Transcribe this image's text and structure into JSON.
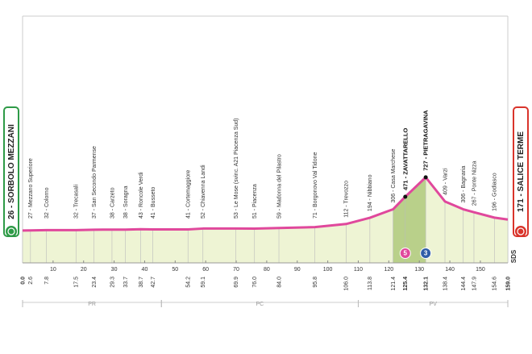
{
  "chart_data": {
    "type": "area",
    "x": [
      0.0,
      2.6,
      7.8,
      17.5,
      23.4,
      29.3,
      33.7,
      38.7,
      42.7,
      54.2,
      59.1,
      69.9,
      76.0,
      84.0,
      95.8,
      106.0,
      113.8,
      121.4,
      125.4,
      132.1,
      138.4,
      144.4,
      147.9,
      154.6,
      159.0
    ],
    "x_labels": [
      "0.0",
      "2.6",
      "7.8",
      "17.5",
      "23.4",
      "29.3",
      "33.7",
      "38.7",
      "42.7",
      "54.2",
      "59.1",
      "69.9",
      "76.0",
      "84.0",
      "95.8",
      "106.0",
      "113.8",
      "121.4",
      "125.4",
      "132.1",
      "138.4",
      "144.4",
      "147.9",
      "154.6",
      "159.0"
    ],
    "values": [
      26,
      27,
      32,
      32,
      37,
      38,
      38,
      43,
      41,
      41,
      52,
      53,
      51,
      59,
      71,
      112,
      194,
      306,
      471,
      727,
      409,
      306,
      267,
      196,
      171
    ],
    "point_labels": [
      "26 - SORBOLO MEZZANI",
      "27 - Mezzano Superiore",
      "32 - Colorno",
      "32 - Trecasali",
      "37 - San Secondo Parmense",
      "38 - Carzeto",
      "38 - Soragna",
      "43 - Roncole Verdi",
      "41 - Busseto",
      "41 - Cortemaggiore",
      "52 - Chiavenna Landi",
      "53 - Le Mose (svinc. A21 Piacenza Sud)",
      "51 - Piacenza",
      "59 - Madonna del Pilastro",
      "71 - Borgonovo Val Tidone",
      "112 - Trevozzo",
      "194 - Nibbiano",
      "306 - Casa Marchese",
      "471 - ZAVATTARELLO",
      "727 - PIETRAGAVINA",
      "409 - Varzi",
      "306 - Bagnaria",
      "267 - Ponte Nizza",
      "196 - Godiasco",
      "171 - SALICE TERME"
    ],
    "climbs": [
      {
        "km": 125.4,
        "category": "5",
        "color": "#e0489c"
      },
      {
        "km": 132.1,
        "category": "3",
        "color": "#2f5ea8"
      }
    ],
    "regions": [
      {
        "label": "PR",
        "from": 0,
        "to": 45.5
      },
      {
        "label": "PC",
        "from": 45.5,
        "to": 110
      },
      {
        "label": "PV",
        "from": 110,
        "to": 159
      }
    ],
    "xlim": [
      0,
      159
    ],
    "xticks": [
      10,
      20,
      30,
      40,
      50,
      60,
      70,
      80,
      90,
      100,
      110,
      120,
      130,
      140,
      150
    ],
    "ylim": [
      -400,
      800
    ],
    "color": "#e0489c",
    "fill": "#eef4d4",
    "start_color": "#2e9a47",
    "finish_color": "#d9342b",
    "footer": "SDS"
  }
}
